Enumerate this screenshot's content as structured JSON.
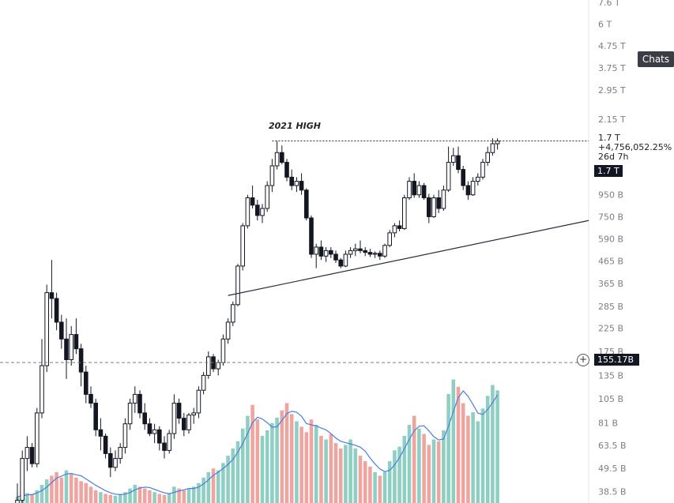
{
  "ui": {
    "chats_label": "Chats",
    "crosshair_value": "155.17B",
    "crosshair_plus_symbol": "+",
    "price_value": "1.7 T",
    "price_change": "+4,756,052.25%",
    "countdown": "26d 7h",
    "price_tag": "1.7 T",
    "annotation": "2021 HIGH"
  },
  "colors": {
    "up": "#131722",
    "down": "#131722",
    "volume_up": "#8fcfc3",
    "volume_down": "#eea5a0",
    "volume_ma": "#4a7de0"
  },
  "chart_data": {
    "type": "candlestick",
    "title": "",
    "y_scale": "log",
    "y_ticks": [
      "7.6 T",
      "6 T",
      "4.75 T",
      "3.75 T",
      "2.95 T",
      "2.15 T",
      "950 B",
      "750 B",
      "590 B",
      "465 B",
      "365 B",
      "285 B",
      "225 B",
      "175 B",
      "135 B",
      "105 B",
      "81 B",
      "63.5 B",
      "49.5 B",
      "38.5 B"
    ],
    "y_tick_values": [
      7600,
      6000,
      4750,
      3750,
      2950,
      2150,
      950,
      750,
      590,
      465,
      365,
      285,
      225,
      175,
      135,
      105,
      81,
      63.5,
      49.5,
      38.5
    ],
    "y_unit": "B",
    "ylim": [
      34,
      7800
    ],
    "candles": [
      [
        28,
        42,
        26,
        35
      ],
      [
        35,
        60,
        30,
        55
      ],
      [
        55,
        70,
        48,
        62
      ],
      [
        62,
        65,
        50,
        52
      ],
      [
        52,
        95,
        50,
        90
      ],
      [
        90,
        200,
        85,
        150
      ],
      [
        150,
        360,
        140,
        330
      ],
      [
        330,
        470,
        250,
        310
      ],
      [
        310,
        330,
        220,
        240
      ],
      [
        240,
        260,
        180,
        200
      ],
      [
        200,
        250,
        130,
        160
      ],
      [
        160,
        230,
        150,
        210
      ],
      [
        210,
        250,
        170,
        180
      ],
      [
        180,
        190,
        120,
        140
      ],
      [
        140,
        150,
        100,
        110
      ],
      [
        110,
        120,
        95,
        100
      ],
      [
        100,
        105,
        70,
        75
      ],
      [
        75,
        85,
        60,
        70
      ],
      [
        70,
        72,
        55,
        58
      ],
      [
        58,
        62,
        45,
        50
      ],
      [
        50,
        60,
        48,
        55
      ],
      [
        55,
        65,
        52,
        62
      ],
      [
        62,
        85,
        58,
        80
      ],
      [
        80,
        105,
        75,
        100
      ],
      [
        100,
        120,
        90,
        110
      ],
      [
        110,
        115,
        85,
        90
      ],
      [
        90,
        100,
        75,
        80
      ],
      [
        80,
        85,
        70,
        72
      ],
      [
        72,
        80,
        65,
        75
      ],
      [
        75,
        78,
        60,
        65
      ],
      [
        65,
        70,
        55,
        60
      ],
      [
        60,
        75,
        58,
        72
      ],
      [
        72,
        110,
        68,
        100
      ],
      [
        100,
        105,
        80,
        85
      ],
      [
        85,
        90,
        70,
        75
      ],
      [
        75,
        90,
        72,
        88
      ],
      [
        88,
        95,
        80,
        90
      ],
      [
        90,
        120,
        85,
        115
      ],
      [
        115,
        140,
        110,
        135
      ],
      [
        135,
        175,
        130,
        165
      ],
      [
        165,
        170,
        140,
        145
      ],
      [
        145,
        160,
        135,
        155
      ],
      [
        155,
        210,
        150,
        200
      ],
      [
        200,
        250,
        190,
        240
      ],
      [
        240,
        300,
        230,
        290
      ],
      [
        290,
        450,
        285,
        440
      ],
      [
        440,
        700,
        420,
        680
      ],
      [
        680,
        950,
        660,
        920
      ],
      [
        920,
        1050,
        820,
        850
      ],
      [
        850,
        900,
        720,
        760
      ],
      [
        760,
        860,
        700,
        820
      ],
      [
        820,
        1100,
        790,
        1050
      ],
      [
        1050,
        1400,
        980,
        1300
      ],
      [
        1300,
        1700,
        1250,
        1500
      ],
      [
        1500,
        1620,
        1320,
        1350
      ],
      [
        1350,
        1400,
        1100,
        1150
      ],
      [
        1150,
        1250,
        1000,
        1050
      ],
      [
        1050,
        1150,
        980,
        1100
      ],
      [
        1100,
        1200,
        950,
        1000
      ],
      [
        1000,
        1020,
        720,
        740
      ],
      [
        740,
        760,
        480,
        500
      ],
      [
        500,
        560,
        430,
        540
      ],
      [
        540,
        580,
        470,
        490
      ],
      [
        490,
        540,
        460,
        520
      ],
      [
        520,
        540,
        480,
        500
      ],
      [
        500,
        520,
        455,
        470
      ],
      [
        470,
        480,
        430,
        440
      ],
      [
        440,
        520,
        435,
        500
      ],
      [
        500,
        540,
        480,
        520
      ],
      [
        520,
        560,
        490,
        530
      ],
      [
        530,
        580,
        505,
        520
      ],
      [
        520,
        540,
        490,
        510
      ],
      [
        510,
        530,
        485,
        500
      ],
      [
        500,
        515,
        480,
        505
      ],
      [
        505,
        520,
        470,
        490
      ],
      [
        490,
        560,
        480,
        550
      ],
      [
        550,
        650,
        540,
        630
      ],
      [
        630,
        700,
        600,
        680
      ],
      [
        680,
        720,
        640,
        660
      ],
      [
        660,
        950,
        650,
        920
      ],
      [
        920,
        1150,
        900,
        1100
      ],
      [
        1100,
        1200,
        920,
        950
      ],
      [
        950,
        1100,
        920,
        1050
      ],
      [
        1050,
        1080,
        900,
        920
      ],
      [
        920,
        960,
        700,
        750
      ],
      [
        750,
        950,
        740,
        920
      ],
      [
        920,
        1000,
        780,
        820
      ],
      [
        820,
        1050,
        800,
        1000
      ],
      [
        1000,
        1600,
        980,
        1350
      ],
      [
        1350,
        1580,
        1300,
        1450
      ],
      [
        1450,
        1600,
        1200,
        1250
      ],
      [
        1250,
        1300,
        1000,
        1050
      ],
      [
        1050,
        1100,
        900,
        950
      ],
      [
        950,
        1150,
        940,
        1100
      ],
      [
        1100,
        1200,
        1050,
        1150
      ],
      [
        1150,
        1400,
        1120,
        1350
      ],
      [
        1350,
        1600,
        1300,
        1500
      ],
      [
        1500,
        1750,
        1450,
        1650
      ],
      [
        1650,
        1750,
        1550,
        1700
      ]
    ],
    "volume": [
      [
        7,
        1
      ],
      [
        9,
        1
      ],
      [
        11,
        1
      ],
      [
        10,
        0
      ],
      [
        14,
        1
      ],
      [
        20,
        1
      ],
      [
        26,
        1
      ],
      [
        30,
        0
      ],
      [
        34,
        0
      ],
      [
        28,
        0
      ],
      [
        36,
        1
      ],
      [
        32,
        0
      ],
      [
        28,
        0
      ],
      [
        24,
        0
      ],
      [
        22,
        0
      ],
      [
        18,
        0
      ],
      [
        14,
        0
      ],
      [
        12,
        1
      ],
      [
        10,
        0
      ],
      [
        9,
        0
      ],
      [
        8,
        1
      ],
      [
        10,
        1
      ],
      [
        12,
        1
      ],
      [
        16,
        1
      ],
      [
        20,
        1
      ],
      [
        18,
        0
      ],
      [
        16,
        0
      ],
      [
        14,
        0
      ],
      [
        12,
        1
      ],
      [
        10,
        0
      ],
      [
        9,
        0
      ],
      [
        10,
        1
      ],
      [
        18,
        1
      ],
      [
        16,
        0
      ],
      [
        14,
        0
      ],
      [
        16,
        1
      ],
      [
        18,
        1
      ],
      [
        22,
        1
      ],
      [
        28,
        1
      ],
      [
        34,
        1
      ],
      [
        38,
        0
      ],
      [
        36,
        1
      ],
      [
        44,
        1
      ],
      [
        52,
        1
      ],
      [
        60,
        1
      ],
      [
        68,
        1
      ],
      [
        82,
        1
      ],
      [
        96,
        1
      ],
      [
        108,
        0
      ],
      [
        92,
        0
      ],
      [
        74,
        1
      ],
      [
        80,
        1
      ],
      [
        88,
        1
      ],
      [
        94,
        1
      ],
      [
        102,
        0
      ],
      [
        110,
        0
      ],
      [
        98,
        0
      ],
      [
        90,
        1
      ],
      [
        84,
        0
      ],
      [
        78,
        0
      ],
      [
        92,
        0
      ],
      [
        86,
        1
      ],
      [
        74,
        0
      ],
      [
        70,
        1
      ],
      [
        76,
        0
      ],
      [
        66,
        0
      ],
      [
        60,
        0
      ],
      [
        64,
        1
      ],
      [
        70,
        1
      ],
      [
        60,
        1
      ],
      [
        52,
        0
      ],
      [
        46,
        0
      ],
      [
        40,
        0
      ],
      [
        34,
        1
      ],
      [
        30,
        0
      ],
      [
        34,
        1
      ],
      [
        46,
        1
      ],
      [
        58,
        1
      ],
      [
        62,
        1
      ],
      [
        74,
        1
      ],
      [
        86,
        1
      ],
      [
        96,
        0
      ],
      [
        82,
        1
      ],
      [
        76,
        0
      ],
      [
        64,
        0
      ],
      [
        70,
        1
      ],
      [
        68,
        0
      ],
      [
        80,
        1
      ],
      [
        120,
        1
      ],
      [
        136,
        1
      ],
      [
        128,
        0
      ],
      [
        110,
        0
      ],
      [
        96,
        0
      ],
      [
        100,
        1
      ],
      [
        90,
        1
      ],
      [
        104,
        1
      ],
      [
        118,
        1
      ],
      [
        130,
        1
      ],
      [
        124,
        1
      ]
    ],
    "support_line": {
      "from": 320,
      "to": 720
    },
    "high_line": 1700,
    "crosshair": 155.17
  }
}
